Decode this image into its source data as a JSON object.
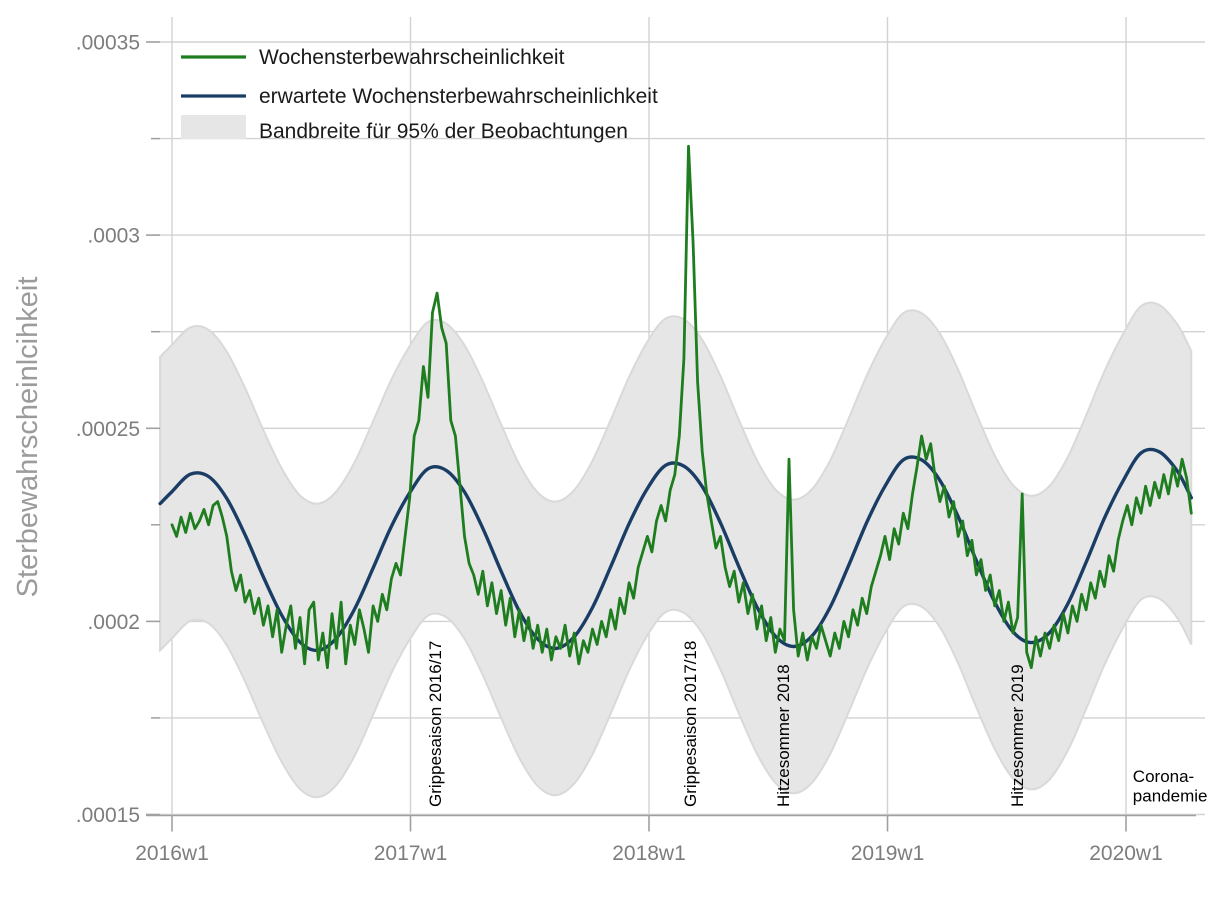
{
  "chart_data": {
    "type": "line",
    "title": "",
    "ylabel": "Sterbewahrscheinlcihkeit",
    "xlabel": "",
    "x_unit": "weeks since 2016w1",
    "value_unit": "probability, stored as value × 1e-6",
    "ylim": [
      0.00015,
      0.00035
    ],
    "xlim_weeks": [
      -2.6,
      224
    ],
    "grid": true,
    "legend_position": "top-left",
    "x_ticks": [
      {
        "t": 0.0,
        "label": "2016w1"
      },
      {
        "t": 52.18,
        "label": "2017w1"
      },
      {
        "t": 104.36,
        "label": "2018w1"
      },
      {
        "t": 156.54,
        "label": "2019w1"
      },
      {
        "t": 208.71,
        "label": "2020w1"
      }
    ],
    "y_ticks_major": [
      {
        "v": 150,
        "label": ".00015"
      },
      {
        "v": 200,
        "label": ".0002"
      },
      {
        "v": 250,
        "label": ".00025"
      },
      {
        "v": 300,
        "label": ".0003"
      },
      {
        "v": 350,
        "label": ".00035"
      }
    ],
    "y_ticks_minor": [
      175,
      225,
      275,
      325
    ],
    "y_gridlines": [
      150,
      175,
      200,
      225,
      250,
      275,
      300,
      325,
      350
    ],
    "band": {
      "name": "Bandbreite für 95% der Beobachtungen",
      "around": "erwartete Wochensterbewahrscheinlichkeit",
      "half_width": 38,
      "fill": "#e6e6e6",
      "edge": "#d9d9d9"
    },
    "series": [
      {
        "name": "Wochensterbewahrscheinlichkeit",
        "color": "#1e7d1e",
        "t_start": 0,
        "t_step": 1,
        "values": [
          225,
          222,
          227,
          223,
          228,
          224,
          226,
          229,
          225,
          230,
          231,
          227,
          222,
          213,
          208,
          212,
          205,
          208,
          202,
          206,
          199,
          204,
          196,
          203,
          192,
          199,
          204,
          193,
          201,
          189,
          203,
          205,
          190,
          197,
          188,
          202,
          193,
          205,
          189,
          199,
          194,
          203,
          198,
          192,
          204,
          200,
          207,
          203,
          211,
          215,
          212,
          222,
          232,
          248,
          252,
          266,
          258,
          280,
          285,
          276,
          272,
          252,
          248,
          235,
          222,
          215,
          212,
          207,
          213,
          204,
          210,
          202,
          208,
          199,
          206,
          196,
          203,
          195,
          201,
          193,
          199,
          192,
          198,
          190,
          196,
          193,
          199,
          191,
          197,
          189,
          195,
          192,
          198,
          194,
          200,
          196,
          203,
          198,
          206,
          202,
          210,
          206,
          214,
          218,
          222,
          218,
          226,
          230,
          226,
          234,
          238,
          248,
          268,
          323,
          298,
          262,
          244,
          233,
          226,
          219,
          222,
          214,
          209,
          213,
          205,
          210,
          202,
          207,
          198,
          204,
          195,
          201,
          192,
          198,
          195,
          242,
          203,
          191,
          197,
          190,
          196,
          193,
          199,
          195,
          191,
          197,
          193,
          200,
          196,
          203,
          199,
          206,
          202,
          209,
          213,
          217,
          222,
          216,
          224,
          220,
          228,
          224,
          233,
          240,
          248,
          242,
          246,
          237,
          231,
          235,
          227,
          231,
          222,
          226,
          217,
          221,
          212,
          216,
          208,
          212,
          204,
          208,
          200,
          205,
          197,
          201,
          233,
          192,
          188,
          196,
          191,
          197,
          193,
          199,
          195,
          202,
          197,
          204,
          200,
          207,
          203,
          210,
          206,
          213,
          209,
          217,
          213,
          221,
          226,
          230,
          225,
          232,
          228,
          235,
          230,
          236,
          232,
          238,
          233,
          240,
          235,
          242,
          237,
          228
        ]
      },
      {
        "name": "erwartete Wochensterbewahrscheinlichkeit",
        "color": "#1a3d66",
        "points": [
          [
            -2.6,
            230.5
          ],
          [
            0,
            233.6
          ],
          [
            4,
            238.1
          ],
          [
            8,
            237.5
          ],
          [
            12,
            231.8
          ],
          [
            16,
            222.4
          ],
          [
            20,
            211.5
          ],
          [
            24,
            201.6
          ],
          [
            28,
            194.6
          ],
          [
            32,
            192.5
          ],
          [
            36,
            195.7
          ],
          [
            40,
            203.3
          ],
          [
            44,
            213.8
          ],
          [
            48,
            224.6
          ],
          [
            52,
            233.3
          ],
          [
            56,
            239.5
          ],
          [
            60,
            239.1
          ],
          [
            64,
            233.5
          ],
          [
            68,
            224.1
          ],
          [
            72,
            213.0
          ],
          [
            76,
            202.6
          ],
          [
            80,
            195.4
          ],
          [
            84,
            193.0
          ],
          [
            88,
            196.0
          ],
          [
            92,
            203.6
          ],
          [
            96,
            214.2
          ],
          [
            100,
            225.3
          ],
          [
            104,
            234.4
          ],
          [
            108,
            240.4
          ],
          [
            112,
            240.2
          ],
          [
            116,
            234.9
          ],
          [
            120,
            225.5
          ],
          [
            124,
            214.2
          ],
          [
            128,
            203.7
          ],
          [
            132,
            196.2
          ],
          [
            136,
            193.5
          ],
          [
            140,
            196.2
          ],
          [
            144,
            203.7
          ],
          [
            148,
            214.4
          ],
          [
            152,
            225.6
          ],
          [
            156,
            235.0
          ],
          [
            160,
            241.8
          ],
          [
            164,
            241.8
          ],
          [
            168,
            236.5
          ],
          [
            172,
            227.1
          ],
          [
            176,
            215.7
          ],
          [
            180,
            205.0
          ],
          [
            184,
            197.3
          ],
          [
            188,
            194.5
          ],
          [
            192,
            197.1
          ],
          [
            196,
            204.6
          ],
          [
            200,
            215.3
          ],
          [
            204,
            226.7
          ],
          [
            208,
            236.2
          ],
          [
            212,
            243.6
          ],
          [
            216,
            243.9
          ],
          [
            220,
            238.8
          ],
          [
            223,
            232.0
          ]
        ]
      }
    ],
    "annotations": [
      {
        "text": "Grippesaison 2016/17",
        "t": 57.5,
        "rotated": true
      },
      {
        "text": "Grippesaison 2017/18",
        "t": 113.3,
        "rotated": true
      },
      {
        "text": "Hitzesommer 2018",
        "t": 133.7,
        "rotated": true
      },
      {
        "text": "Hitzesommer 2019",
        "t": 184.9,
        "rotated": true
      },
      {
        "text": "Corona-pandemie",
        "lines": [
          "Corona-",
          "pandemie"
        ],
        "t": 210.2,
        "rotated": false
      }
    ]
  },
  "legend": {
    "items": [
      {
        "label": "Wochensterbewahrscheinlichkeit",
        "swatch": "line",
        "color": "#1e7d1e"
      },
      {
        "label": "erwartete Wochensterbewahrscheinlichkeit",
        "swatch": "line",
        "color": "#1a3d66"
      },
      {
        "label": "Bandbreite für 95% der Beobachtungen",
        "swatch": "box",
        "color": "#e6e6e6"
      }
    ]
  },
  "style_colors": {
    "gridline": "#d2d2d2",
    "axis": "#a0a0a0",
    "tick_label": "#7d7d7d",
    "axis_title": "#9b9b9b",
    "annotation_text": "#000000"
  }
}
